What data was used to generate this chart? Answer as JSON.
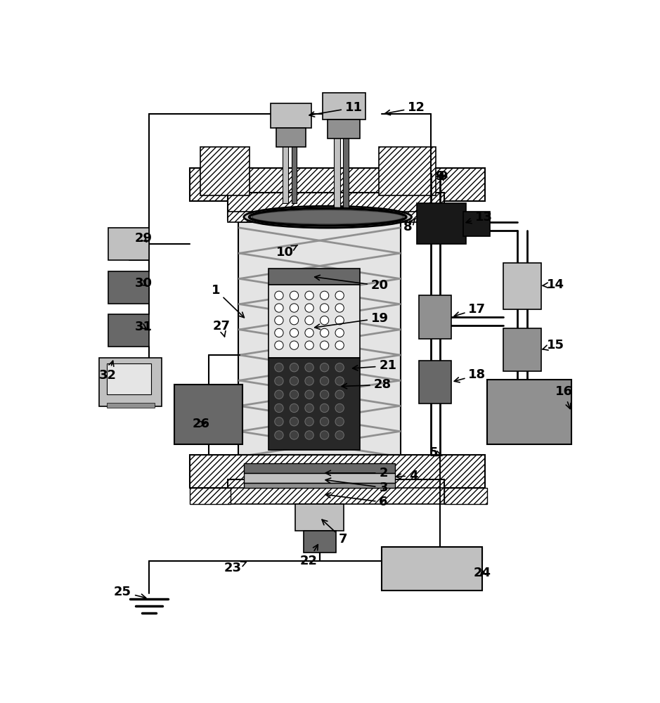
{
  "bg": "#ffffff",
  "c_white": "#ffffff",
  "c_light": "#d8d8d8",
  "c_lgray": "#c0c0c0",
  "c_mgray": "#909090",
  "c_dgray": "#686868",
  "c_xdgray": "#484848",
  "c_black": "#181818",
  "c_vessel": "#e4e4e4",
  "c_dark_getter": "#282828",
  "c_heater": "#585858"
}
